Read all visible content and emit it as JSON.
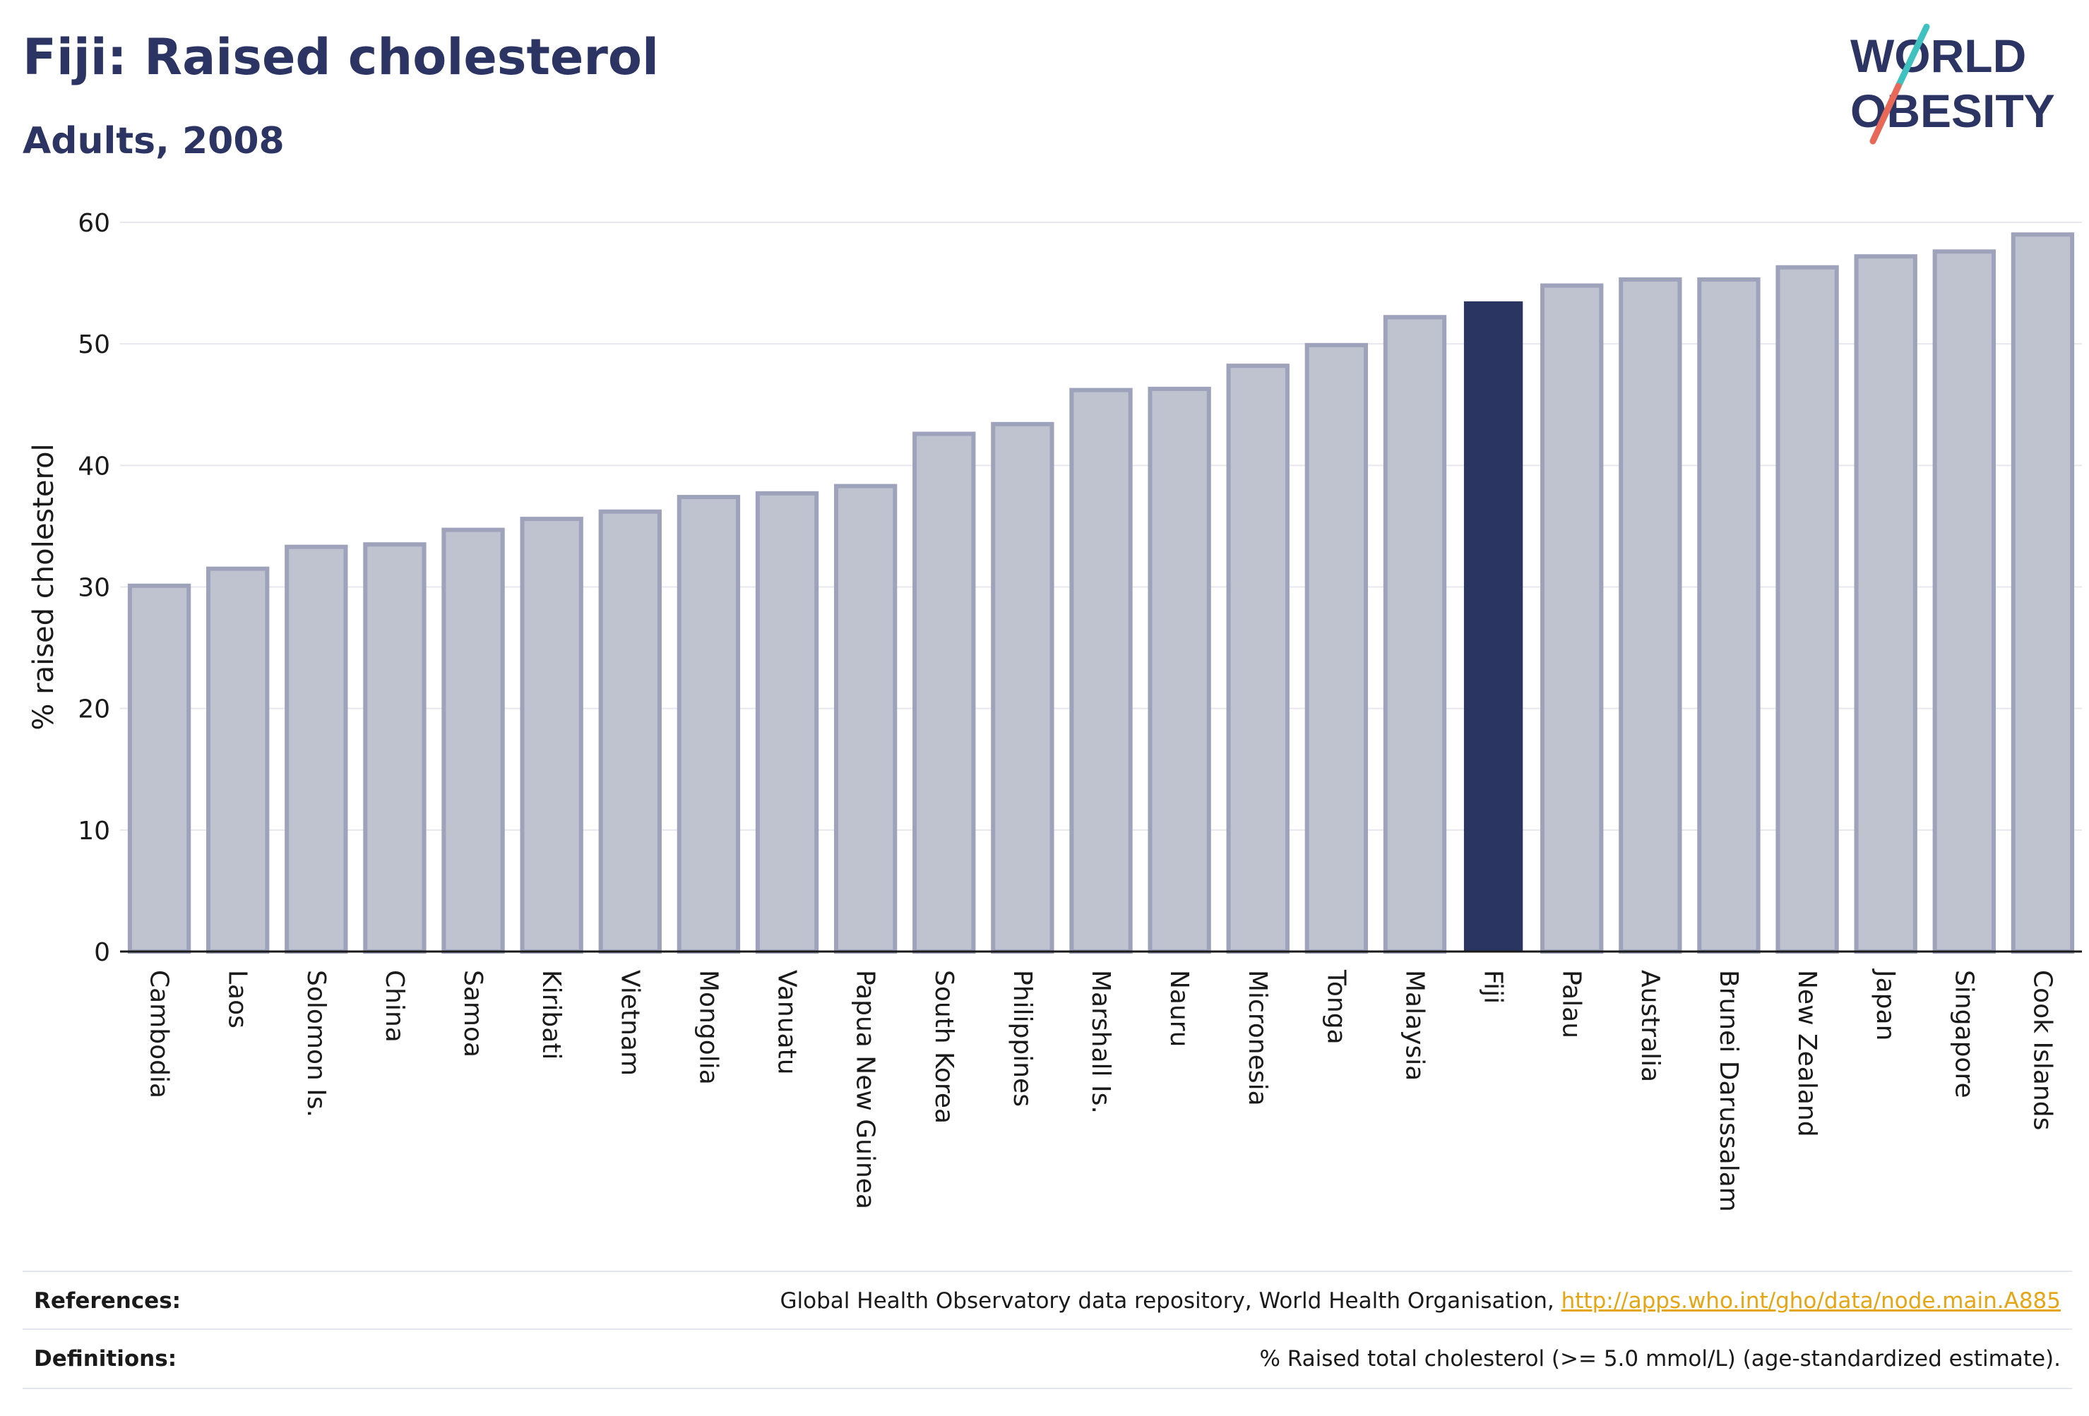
{
  "header": {
    "title": "Fiji: Raised cholesterol",
    "subtitle": "Adults, 2008"
  },
  "logo": {
    "line1": "WORLD",
    "line2": "OBESITY",
    "accent_colors": [
      "#3fc1c0",
      "#e8695a"
    ]
  },
  "colors": {
    "highlight_bar": "#2a3561",
    "default_bar_fill": "#bfc2cf",
    "default_bar_stroke": "#9ea2ba",
    "text": "#2a3561",
    "link": "#e6a514"
  },
  "chart_data": {
    "type": "bar",
    "ylabel": "% raised cholesterol",
    "ylim": [
      0,
      60
    ],
    "yticks": [
      0,
      10,
      20,
      30,
      40,
      50,
      60
    ],
    "grid": true,
    "highlight": "Fiji",
    "categories": [
      "Cambodia",
      "Laos",
      "Solomon Is.",
      "China",
      "Samoa",
      "Kiribati",
      "Vietnam",
      "Mongolia",
      "Vanuatu",
      "Papua New Guinea",
      "South Korea",
      "Philippines",
      "Marshall Is.",
      "Nauru",
      "Micronesia",
      "Tonga",
      "Malaysia",
      "Fiji",
      "Palau",
      "Australia",
      "Brunei Darussalam",
      "New Zealand",
      "Japan",
      "Singapore",
      "Cook Islands"
    ],
    "values": [
      30.1,
      31.5,
      33.3,
      33.5,
      34.7,
      35.6,
      36.2,
      37.4,
      37.7,
      38.3,
      42.6,
      43.4,
      46.2,
      46.3,
      48.2,
      49.9,
      52.2,
      53.5,
      54.8,
      55.3,
      55.3,
      56.3,
      57.2,
      57.6,
      59.0
    ]
  },
  "footer": {
    "references_label": "References:",
    "references_text": "Global Health Observatory data repository, World Health Organisation, ",
    "references_link": "http://apps.who.int/gho/data/node.main.A885",
    "definitions_label": "Definitions:",
    "definitions_text": "% Raised total cholesterol (>= 5.0 mmol/L) (age-standardized estimate)."
  }
}
